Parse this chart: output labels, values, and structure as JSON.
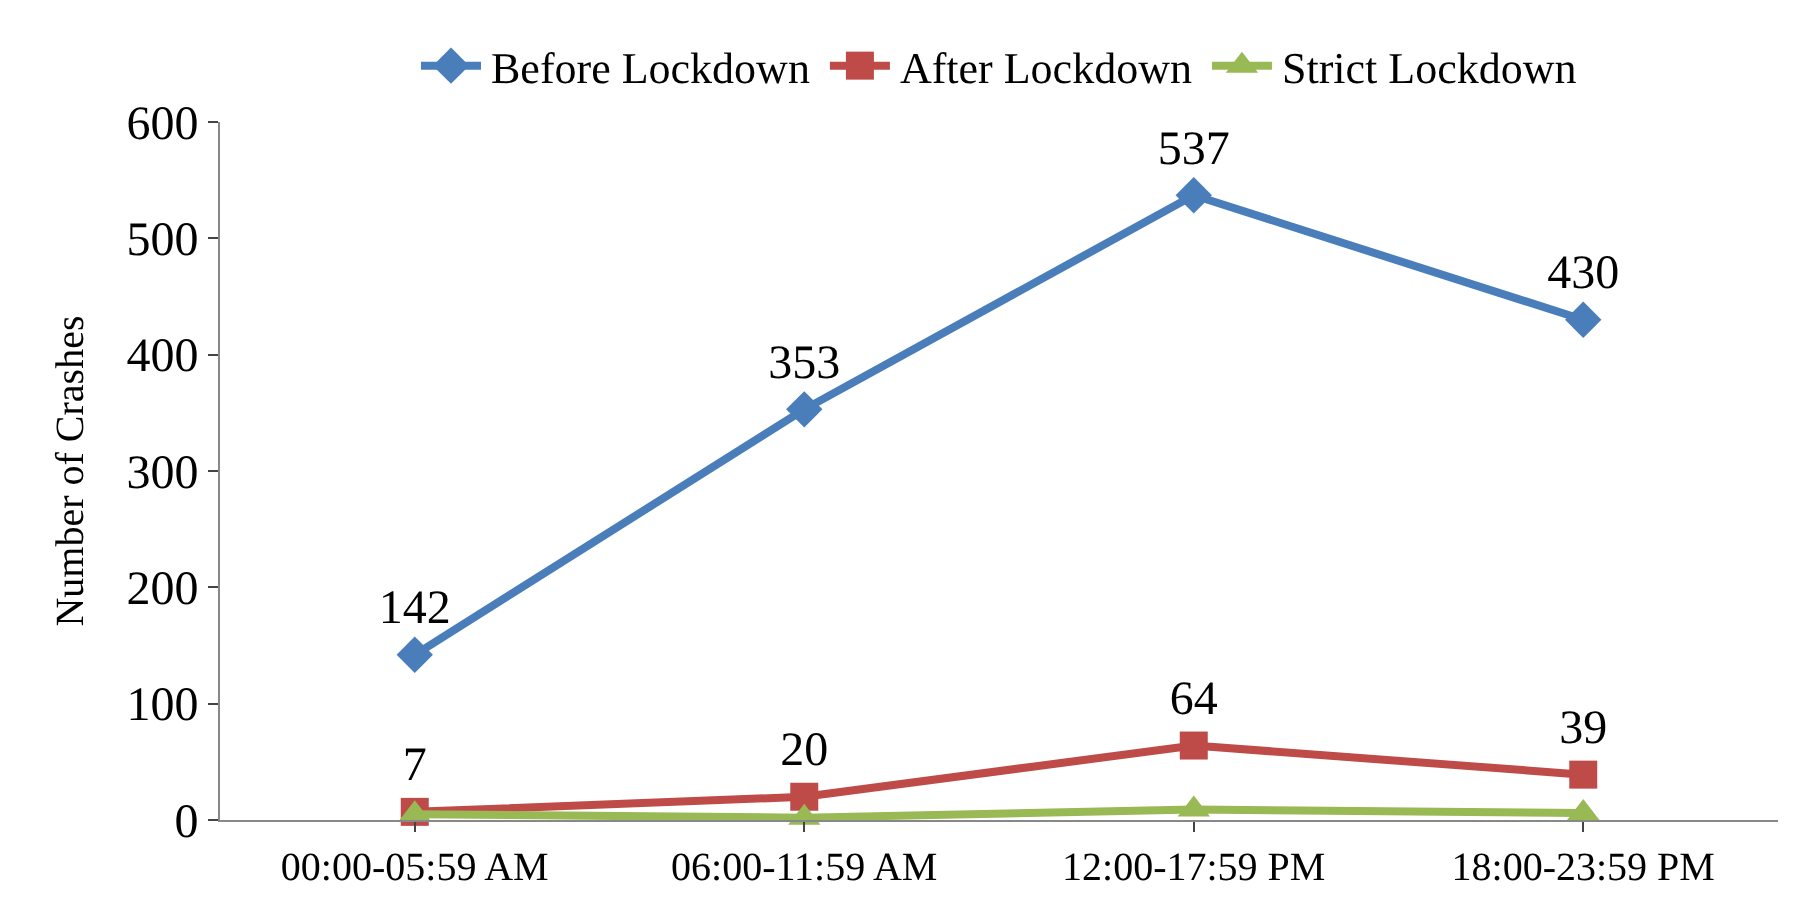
{
  "chart_data": {
    "type": "line",
    "ylabel": "Number of Crashes",
    "categories": [
      "00:00-05:59 AM",
      "06:00-11:59 AM",
      "12:00-17:59 PM",
      "18:00-23:59 PM"
    ],
    "series": [
      {
        "name": "Before Lockdown",
        "color": "#4a7ebb",
        "marker": "diamond",
        "values": [
          142,
          353,
          537,
          430
        ],
        "value_labels": [
          "142",
          "353",
          "537",
          "430"
        ]
      },
      {
        "name": "After Lockdown",
        "color": "#be4b48",
        "marker": "square",
        "values": [
          7,
          20,
          64,
          39
        ],
        "value_labels": [
          "7",
          "20",
          "64",
          "39"
        ]
      },
      {
        "name": "Strict Lockdown",
        "color": "#98b954",
        "marker": "triangle",
        "values": [
          5,
          2,
          9,
          6
        ]
      }
    ],
    "ylim": [
      0,
      600
    ],
    "yticks": [
      0,
      100,
      200,
      300,
      400,
      500,
      600
    ],
    "legend": "top",
    "line_style": "solid"
  }
}
